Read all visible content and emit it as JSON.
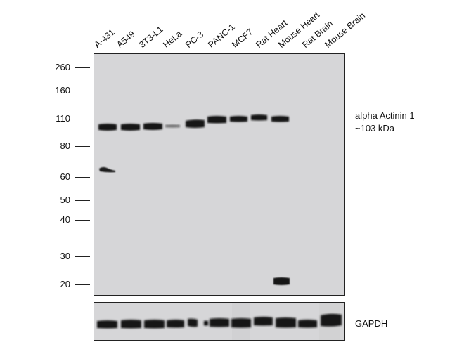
{
  "lanes": [
    {
      "label": "A-431"
    },
    {
      "label": "A549"
    },
    {
      "label": "3T3-L1"
    },
    {
      "label": "HeLa"
    },
    {
      "label": "PC-3"
    },
    {
      "label": "PANC-1"
    },
    {
      "label": "MCF7"
    },
    {
      "label": "Rat Heart"
    },
    {
      "label": "Mouse Heart"
    },
    {
      "label": "Rat Brain"
    },
    {
      "label": "Mouse Brain"
    }
  ],
  "markers": [
    "260",
    "160",
    "110",
    "80",
    "60",
    "50",
    "40",
    "30",
    "20"
  ],
  "target": {
    "name": "alpha Actinin 1",
    "size": "~103 kDa"
  },
  "loading_control": {
    "name": "GAPDH"
  },
  "colors": {
    "membrane": "#d6d6d8",
    "band": "#141414",
    "frame": "#222222"
  }
}
